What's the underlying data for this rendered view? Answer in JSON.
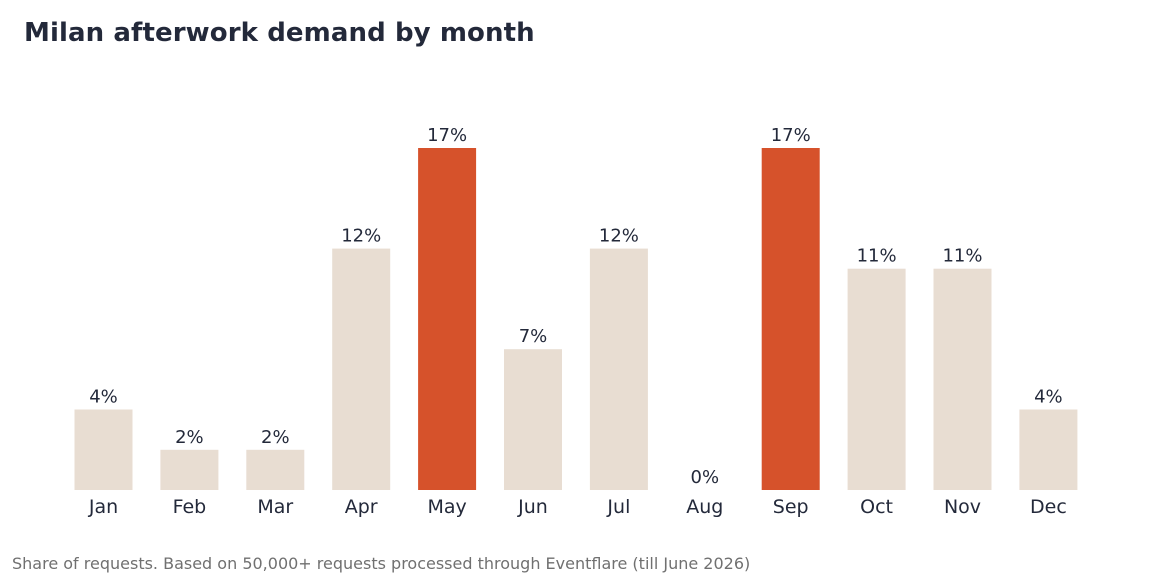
{
  "title": "Milan afterwork demand by month",
  "footer": "Share of requests. Based on 50,000+ requests processed through Eventflare (till June 2026)",
  "colors": {
    "base": "#e8ddd2",
    "highlight": "#d6522b",
    "text": "#23293a",
    "muted": "#707070"
  },
  "chart_data": {
    "type": "bar",
    "title": "Milan afterwork demand by month",
    "categories": [
      "Jan",
      "Feb",
      "Mar",
      "Apr",
      "May",
      "Jun",
      "Jul",
      "Aug",
      "Sep",
      "Oct",
      "Nov",
      "Dec"
    ],
    "values": [
      4,
      2,
      2,
      12,
      17,
      7,
      12,
      0,
      17,
      11,
      11,
      4
    ],
    "labels": [
      "4%",
      "2%",
      "2%",
      "12%",
      "17%",
      "7%",
      "12%",
      "0%",
      "17%",
      "11%",
      "11%",
      "4%"
    ],
    "highlight": [
      "May",
      "Sep"
    ],
    "unit": "%",
    "ylim": [
      0,
      17
    ],
    "grid": false,
    "legend": "none",
    "xlabel": "",
    "ylabel": ""
  }
}
